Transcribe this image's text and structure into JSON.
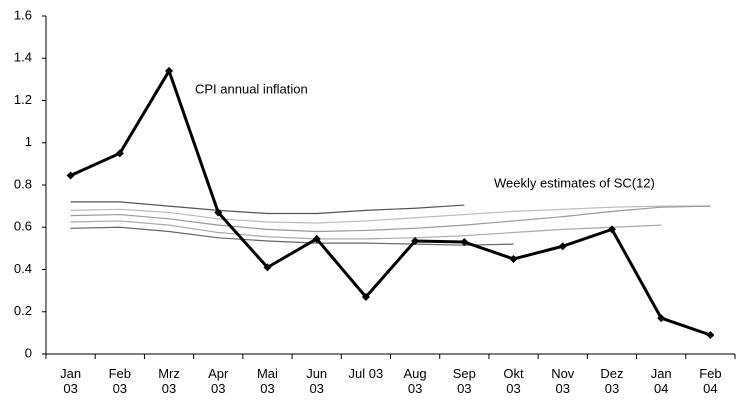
{
  "chart_data": {
    "type": "line",
    "categories": [
      "Jan\n03",
      "Feb\n03",
      "Mrz\n03",
      "Apr\n03",
      "Mai\n03",
      "Jun\n03",
      "Jul 03",
      "Aug\n03",
      "Sep\n03",
      "Okt\n03",
      "Nov\n03",
      "Dez\n03",
      "Jan\n04",
      "Feb\n04"
    ],
    "series": [
      {
        "color": "#555555",
        "values": [
          0.72,
          0.72,
          0.7,
          0.68,
          0.665,
          0.665,
          0.68,
          0.69,
          0.705,
          null,
          null,
          null,
          null,
          null
        ]
      },
      {
        "color": "#bbbbbb",
        "values": [
          0.68,
          0.685,
          0.67,
          0.64,
          0.625,
          0.62,
          0.63,
          0.645,
          0.66,
          0.675,
          0.685,
          0.695,
          0.7,
          0.7
        ]
      },
      {
        "color": "#999999",
        "values": [
          0.655,
          0.66,
          0.64,
          0.61,
          0.59,
          0.58,
          0.585,
          0.595,
          0.61,
          0.63,
          0.65,
          0.675,
          0.695,
          0.7
        ]
      },
      {
        "color": "#aaaaaa",
        "values": [
          0.625,
          0.63,
          0.61,
          0.575,
          0.555,
          0.545,
          0.545,
          0.55,
          0.56,
          0.575,
          0.59,
          0.6,
          0.61,
          null
        ]
      },
      {
        "color": "#666666",
        "values": [
          0.595,
          0.6,
          0.58,
          0.55,
          0.535,
          0.525,
          0.525,
          0.52,
          0.515,
          0.52,
          null,
          null,
          null,
          null
        ]
      },
      {
        "color": "#000000",
        "marker": "diamond",
        "width": 3,
        "values": [
          0.845,
          0.95,
          1.34,
          0.67,
          0.41,
          0.545,
          0.27,
          0.535,
          0.53,
          0.45,
          0.51,
          0.59,
          0.17,
          0.09
        ]
      }
    ],
    "annotations": [
      "CPI annual inflation",
      "Weekly estimates of SC(12)"
    ],
    "ylim": [
      0,
      1.6
    ],
    "yticks": [
      0,
      0.2,
      0.4,
      0.6,
      0.8,
      1,
      1.2,
      1.4,
      1.6
    ],
    "grid": false
  }
}
